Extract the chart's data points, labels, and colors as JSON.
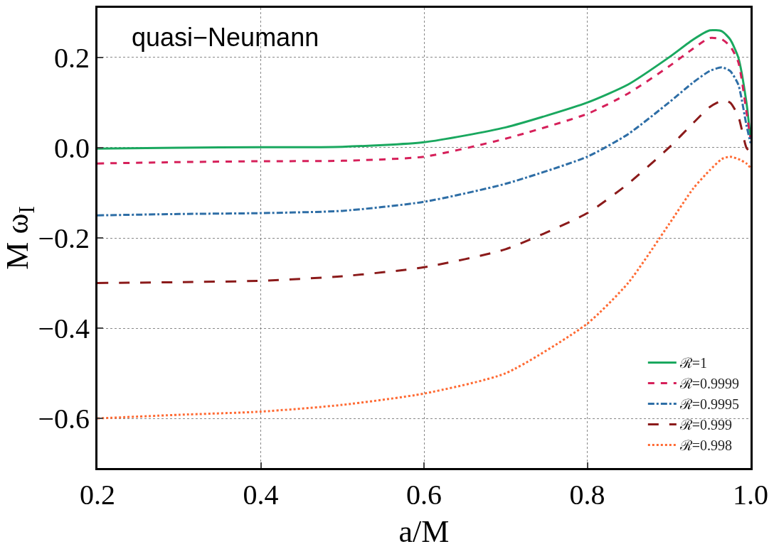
{
  "chart_data": {
    "type": "line",
    "xlabel": "a/M",
    "ylabel": "M ω$_{I}$",
    "annotations": [
      "quasi−Neumann"
    ],
    "xlim": [
      0.2,
      1.0
    ],
    "ylim": [
      -0.71,
      0.31
    ],
    "xticks": [
      {
        "value": 0.2,
        "label": "0.2"
      },
      {
        "value": 0.4,
        "label": "0.4"
      },
      {
        "value": 0.6,
        "label": "0.6"
      },
      {
        "value": 0.8,
        "label": "0.8"
      },
      {
        "value": 1.0,
        "label": "1.0"
      }
    ],
    "yticks": [
      {
        "value": -0.6,
        "label": "−0.6"
      },
      {
        "value": -0.4,
        "label": "−0.4"
      },
      {
        "value": -0.2,
        "label": "−0.2"
      },
      {
        "value": 0.0,
        "label": "0.0"
      },
      {
        "value": 0.2,
        "label": "0.2"
      }
    ],
    "grid": true,
    "legend": "bottom right",
    "marker": "none",
    "x": [
      0.2,
      0.3,
      0.4,
      0.5,
      0.6,
      0.7,
      0.8,
      0.85,
      0.9,
      0.93,
      0.95,
      0.965,
      0.975,
      0.985,
      0.995,
      1.0
    ],
    "series": [
      {
        "name": "ℛ=1",
        "color": "#1aa85f",
        "line_style": "solid",
        "values": [
          -0.002,
          0.0,
          0.001,
          0.002,
          0.012,
          0.045,
          0.1,
          0.14,
          0.2,
          0.24,
          0.26,
          0.258,
          0.24,
          0.2,
          0.1,
          0.02
        ]
      },
      {
        "name": "ℛ=0.9999",
        "color": "#d6205a",
        "line_style": "dashed",
        "values": [
          -0.035,
          -0.032,
          -0.03,
          -0.029,
          -0.02,
          0.02,
          0.075,
          0.12,
          0.18,
          0.22,
          0.243,
          0.24,
          0.225,
          0.19,
          0.08,
          0.02
        ]
      },
      {
        "name": "ℛ=0.9995",
        "color": "#2e6ea6",
        "line_style": "dashdot",
        "values": [
          -0.15,
          -0.147,
          -0.145,
          -0.14,
          -0.12,
          -0.08,
          -0.02,
          0.03,
          0.1,
          0.145,
          0.17,
          0.178,
          0.17,
          0.14,
          0.05,
          0.01
        ]
      },
      {
        "name": "ℛ=0.999",
        "color": "#8b1a1a",
        "line_style": "longdash",
        "values": [
          -0.3,
          -0.298,
          -0.295,
          -0.285,
          -0.265,
          -0.225,
          -0.145,
          -0.08,
          0.0,
          0.055,
          0.09,
          0.104,
          0.1,
          0.07,
          0.0,
          -0.01
        ]
      },
      {
        "name": "ℛ=0.998",
        "color": "#ff6a33",
        "line_style": "dotted",
        "values": [
          -0.6,
          -0.592,
          -0.585,
          -0.57,
          -0.545,
          -0.5,
          -0.39,
          -0.3,
          -0.17,
          -0.09,
          -0.05,
          -0.025,
          -0.02,
          -0.025,
          -0.035,
          -0.045
        ]
      }
    ]
  }
}
